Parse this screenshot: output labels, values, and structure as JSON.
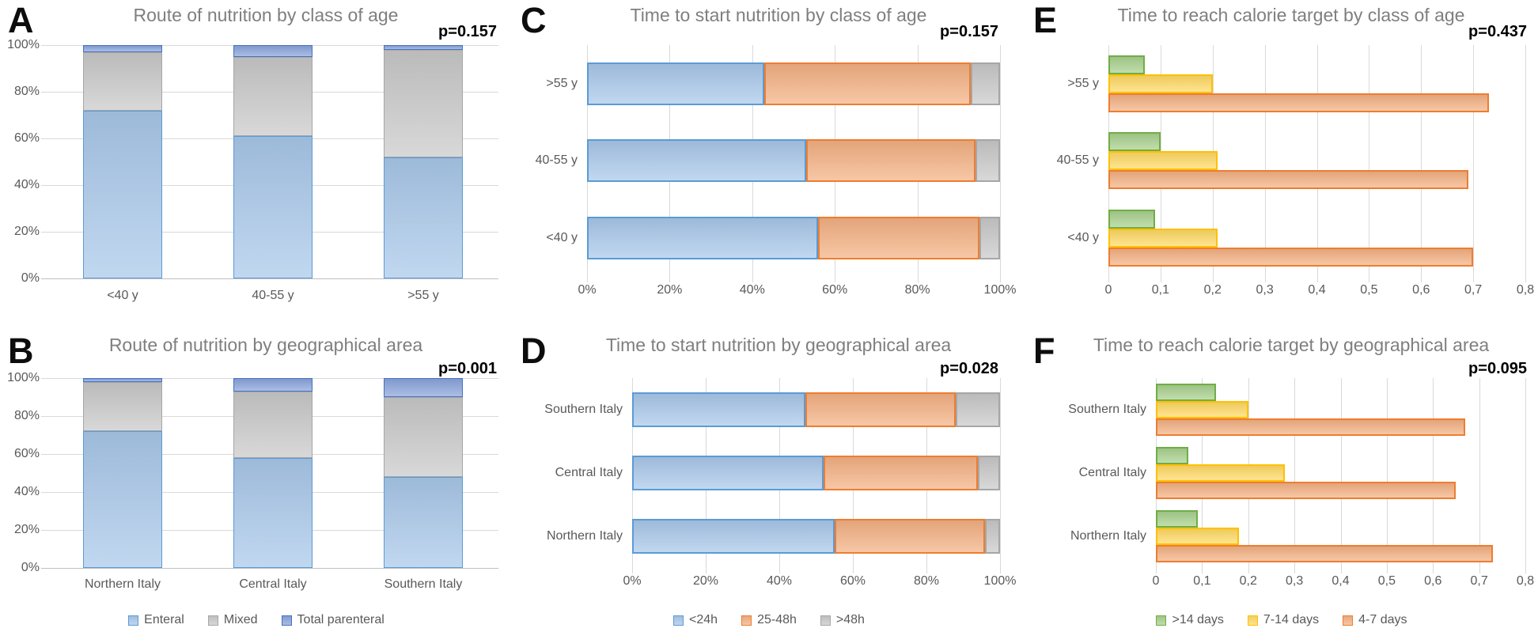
{
  "colors": {
    "blue": {
      "fill": "#A9C8EA",
      "border": "#5B9BD5"
    },
    "gray": {
      "fill": "#C9C9C9",
      "border": "#A6A6A6"
    },
    "darkblue": {
      "fill": "#8AA4DB",
      "border": "#4472C4"
    },
    "orange": {
      "fill": "#F4B183",
      "border": "#ED7D31"
    },
    "green": {
      "fill": "#A9D18E",
      "border": "#70AD47"
    },
    "yellow": {
      "fill": "#FFDA65",
      "border": "#FFC000"
    }
  },
  "chart_data": [
    {
      "panel": "A",
      "letter": "A",
      "title": "Route of nutrition by class of age",
      "p_value": "p=0.157",
      "type": "bar",
      "subtype": "column-stacked-100",
      "categories": [
        "<40 y",
        "40-55 y",
        ">55 y"
      ],
      "series": [
        {
          "name": "Enteral",
          "color": "blue",
          "values": [
            72,
            61,
            52
          ]
        },
        {
          "name": "Mixed",
          "color": "gray",
          "values": [
            25,
            34,
            46
          ]
        },
        {
          "name": "Total parenteral",
          "color": "darkblue",
          "values": [
            3,
            5,
            2
          ]
        }
      ],
      "y_ticks": [
        "0%",
        "20%",
        "40%",
        "60%",
        "80%",
        "100%"
      ],
      "ylim": [
        0,
        100
      ],
      "grid": "horizontal"
    },
    {
      "panel": "B",
      "letter": "B",
      "title": "Route of nutrition by geographical area",
      "p_value": "p=0.001",
      "type": "bar",
      "subtype": "column-stacked-100",
      "categories": [
        "Northern Italy",
        "Central Italy",
        "Southern Italy"
      ],
      "series": [
        {
          "name": "Enteral",
          "color": "blue",
          "values": [
            72,
            58,
            48
          ]
        },
        {
          "name": "Mixed",
          "color": "gray",
          "values": [
            26,
            35,
            42
          ]
        },
        {
          "name": "Total parenteral",
          "color": "darkblue",
          "values": [
            2,
            7,
            10
          ]
        }
      ],
      "y_ticks": [
        "0%",
        "20%",
        "40%",
        "60%",
        "80%",
        "100%"
      ],
      "ylim": [
        0,
        100
      ],
      "grid": "horizontal",
      "legend": [
        {
          "label": "Enteral",
          "color": "blue"
        },
        {
          "label": "Mixed",
          "color": "gray"
        },
        {
          "label": "Total parenteral",
          "color": "darkblue"
        }
      ],
      "legend_position": "bottom"
    },
    {
      "panel": "C",
      "letter": "C",
      "title": "Time to start nutrition by class of age",
      "p_value": "p=0.157",
      "type": "bar",
      "subtype": "bar-horizontal-stacked-100",
      "categories": [
        ">55 y",
        "40-55 y",
        "<40 y"
      ],
      "series": [
        {
          "name": "<24h",
          "color": "blue",
          "values": [
            43,
            53,
            56
          ]
        },
        {
          "name": "25-48h",
          "color": "orange",
          "values": [
            50,
            41,
            39
          ]
        },
        {
          "name": ">48h",
          "color": "gray",
          "values": [
            7,
            6,
            5
          ]
        }
      ],
      "x_ticks": [
        "0%",
        "20%",
        "40%",
        "60%",
        "80%",
        "100%"
      ],
      "xlim": [
        0,
        100
      ],
      "grid": "vertical"
    },
    {
      "panel": "D",
      "letter": "D",
      "title": "Time to start nutrition by geographical area",
      "p_value": "p=0.028",
      "type": "bar",
      "subtype": "bar-horizontal-stacked-100",
      "categories": [
        "Southern Italy",
        "Central Italy",
        "Northern Italy"
      ],
      "series": [
        {
          "name": "<24h",
          "color": "blue",
          "values": [
            47,
            52,
            55
          ]
        },
        {
          "name": "25-48h",
          "color": "orange",
          "values": [
            41,
            42,
            41
          ]
        },
        {
          "name": ">48h",
          "color": "gray",
          "values": [
            12,
            6,
            4
          ]
        }
      ],
      "x_ticks": [
        "0%",
        "20%",
        "40%",
        "60%",
        "80%",
        "100%"
      ],
      "xlim": [
        0,
        100
      ],
      "grid": "vertical",
      "legend": [
        {
          "label": "<24h",
          "color": "blue"
        },
        {
          "label": "25-48h",
          "color": "orange"
        },
        {
          "label": ">48h",
          "color": "gray"
        }
      ],
      "legend_position": "bottom"
    },
    {
      "panel": "E",
      "letter": "E",
      "title": "Time to reach calorie target by class of age",
      "p_value": "p=0.437",
      "type": "bar",
      "subtype": "bar-horizontal-grouped",
      "categories": [
        ">55 y",
        "40-55 y",
        "<40 y"
      ],
      "series": [
        {
          "name": ">14 days",
          "color": "green",
          "values": [
            0.07,
            0.1,
            0.09
          ]
        },
        {
          "name": "7-14 days",
          "color": "yellow",
          "values": [
            0.2,
            0.21,
            0.21
          ]
        },
        {
          "name": "4-7 days",
          "color": "orange",
          "values": [
            0.73,
            0.69,
            0.7
          ]
        }
      ],
      "x_ticks": [
        "0",
        "0,1",
        "0,2",
        "0,3",
        "0,4",
        "0,5",
        "0,6",
        "0,7",
        "0,8"
      ],
      "xlim": [
        0,
        0.8
      ],
      "grid": "vertical"
    },
    {
      "panel": "F",
      "letter": "F",
      "title": "Time to reach calorie target by geographical area",
      "p_value": "p=0.095",
      "type": "bar",
      "subtype": "bar-horizontal-grouped",
      "categories": [
        "Southern Italy",
        "Central Italy",
        "Northern Italy"
      ],
      "series": [
        {
          "name": ">14 days",
          "color": "green",
          "values": [
            0.13,
            0.07,
            0.09
          ]
        },
        {
          "name": "7-14 days",
          "color": "yellow",
          "values": [
            0.2,
            0.28,
            0.18
          ]
        },
        {
          "name": "4-7 days",
          "color": "orange",
          "values": [
            0.67,
            0.65,
            0.73
          ]
        }
      ],
      "x_ticks": [
        "0",
        "0,1",
        "0,2",
        "0,3",
        "0,4",
        "0,5",
        "0,6",
        "0,7",
        "0,8"
      ],
      "xlim": [
        0,
        0.8
      ],
      "grid": "vertical",
      "legend": [
        {
          "label": ">14 days",
          "color": "green"
        },
        {
          "label": "7-14 days",
          "color": "yellow"
        },
        {
          "label": "4-7 days",
          "color": "orange"
        }
      ],
      "legend_position": "bottom"
    }
  ]
}
